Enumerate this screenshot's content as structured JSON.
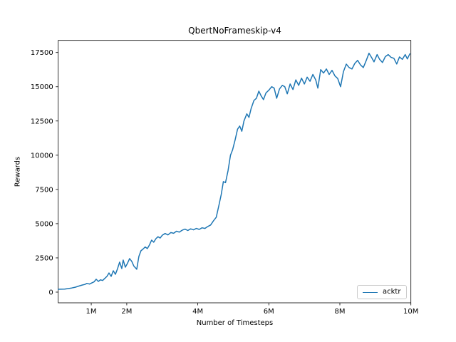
{
  "figure": {
    "background": "#ffffff"
  },
  "chart_data": {
    "type": "line",
    "title": "QbertNoFrameskip-v4",
    "xlabel": "Number of Timesteps",
    "ylabel": "Rewards",
    "x_unit": "millions",
    "xlim": [
      0.07,
      10.0
    ],
    "ylim": [
      -781,
      18385
    ],
    "grid": false,
    "x_ticks": [
      {
        "value": 1,
        "label": "1M"
      },
      {
        "value": 2,
        "label": "2M"
      },
      {
        "value": 4,
        "label": "4M"
      },
      {
        "value": 6,
        "label": "6M"
      },
      {
        "value": 8,
        "label": "8M"
      },
      {
        "value": 10,
        "label": "10M"
      }
    ],
    "y_ticks": [
      {
        "value": 0,
        "label": "0"
      },
      {
        "value": 2500,
        "label": "2500"
      },
      {
        "value": 5000,
        "label": "5000"
      },
      {
        "value": 7500,
        "label": "7500"
      },
      {
        "value": 10000,
        "label": "10000"
      },
      {
        "value": 12500,
        "label": "12500"
      },
      {
        "value": 15000,
        "label": "15000"
      },
      {
        "value": 17500,
        "label": "17500"
      }
    ],
    "legend": {
      "position": "lower right",
      "entries": [
        {
          "label": "acktr",
          "color": "#1f77b4"
        }
      ]
    },
    "series": [
      {
        "name": "acktr",
        "color": "#1f77b4",
        "line_width": 1.5,
        "x": [
          0.07,
          0.15,
          0.25,
          0.35,
          0.45,
          0.55,
          0.65,
          0.75,
          0.82,
          0.88,
          0.95,
          1.02,
          1.08,
          1.14,
          1.2,
          1.26,
          1.32,
          1.38,
          1.44,
          1.5,
          1.56,
          1.62,
          1.68,
          1.74,
          1.8,
          1.86,
          1.9,
          1.96,
          2.02,
          2.08,
          2.14,
          2.2,
          2.28,
          2.34,
          2.4,
          2.46,
          2.52,
          2.58,
          2.64,
          2.7,
          2.76,
          2.82,
          2.88,
          2.94,
          3.0,
          3.08,
          3.16,
          3.24,
          3.32,
          3.4,
          3.48,
          3.56,
          3.64,
          3.72,
          3.8,
          3.88,
          3.96,
          4.04,
          4.12,
          4.2,
          4.28,
          4.36,
          4.44,
          4.52,
          4.6,
          4.66,
          4.72,
          4.78,
          4.85,
          4.92,
          4.98,
          5.05,
          5.12,
          5.18,
          5.24,
          5.3,
          5.38,
          5.44,
          5.5,
          5.58,
          5.65,
          5.72,
          5.78,
          5.85,
          5.92,
          6.0,
          6.08,
          6.15,
          6.22,
          6.3,
          6.38,
          6.45,
          6.52,
          6.6,
          6.68,
          6.76,
          6.84,
          6.92,
          7.0,
          7.08,
          7.16,
          7.24,
          7.32,
          7.38,
          7.46,
          7.54,
          7.62,
          7.7,
          7.78,
          7.86,
          7.94,
          8.02,
          8.1,
          8.18,
          8.26,
          8.34,
          8.42,
          8.5,
          8.58,
          8.66,
          8.74,
          8.82,
          8.9,
          8.96,
          9.05,
          9.12,
          9.2,
          9.28,
          9.36,
          9.44,
          9.52,
          9.6,
          9.68,
          9.76,
          9.84,
          9.9,
          9.97
        ],
        "y": [
          210,
          215,
          225,
          260,
          300,
          360,
          440,
          520,
          560,
          640,
          590,
          680,
          750,
          940,
          780,
          900,
          850,
          1000,
          1145,
          1400,
          1150,
          1560,
          1300,
          1700,
          2190,
          1720,
          2340,
          1820,
          2100,
          2450,
          2250,
          1900,
          1670,
          2600,
          3020,
          3150,
          3300,
          3180,
          3450,
          3800,
          3650,
          3900,
          4050,
          3950,
          4160,
          4280,
          4180,
          4350,
          4300,
          4450,
          4380,
          4520,
          4600,
          4500,
          4620,
          4550,
          4650,
          4580,
          4700,
          4650,
          4790,
          4900,
          5200,
          5470,
          6400,
          7130,
          8070,
          8000,
          8850,
          10000,
          10400,
          11100,
          11900,
          12130,
          11750,
          12500,
          13020,
          12760,
          13400,
          14000,
          14160,
          14680,
          14350,
          14060,
          14550,
          14750,
          15000,
          14900,
          14160,
          14840,
          15100,
          15000,
          14480,
          15200,
          14800,
          15500,
          15100,
          15625,
          15200,
          15700,
          15400,
          15900,
          15500,
          14900,
          16250,
          16000,
          16300,
          15900,
          16200,
          15800,
          15600,
          15000,
          16100,
          16650,
          16400,
          16300,
          16700,
          16930,
          16600,
          16400,
          16900,
          17450,
          17100,
          16820,
          17350,
          17000,
          16770,
          17200,
          17350,
          17150,
          17080,
          16660,
          17180,
          17000,
          17350,
          17030,
          17400
        ]
      }
    ]
  }
}
